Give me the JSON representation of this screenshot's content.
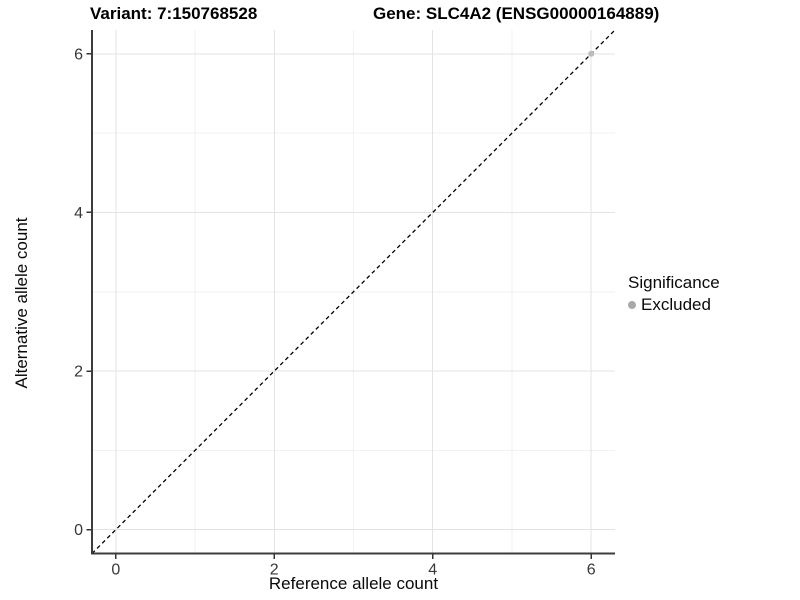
{
  "chart_data": {
    "type": "scatter",
    "title_left": "Variant: 7:150768528",
    "title_right": "Gene: SLC4A2 (ENSG00000164889)",
    "xlabel": "Reference allele count",
    "ylabel": "Alternative allele count",
    "xlim": [
      -0.3,
      6.3
    ],
    "ylim": [
      -0.3,
      6.3
    ],
    "x_ticks": [
      0,
      2,
      4,
      6
    ],
    "y_ticks": [
      0,
      2,
      4,
      6
    ],
    "x_minor": [
      1,
      3,
      5
    ],
    "y_minor": [
      1,
      3,
      5
    ],
    "grid": "on",
    "legend": {
      "title": "Significance",
      "position": "right",
      "items": [
        {
          "label": "Excluded",
          "color": "#a9a9a9"
        }
      ]
    },
    "series": [
      {
        "name": "Excluded",
        "color": "#bcbcbc",
        "points": [
          [
            6,
            6
          ]
        ]
      }
    ],
    "identity_line": {
      "style": "dashed",
      "color": "#000000"
    }
  },
  "colors": {
    "background": "#ffffff",
    "grid_major": "#e3e3e3",
    "grid_minor": "#f2f2f2",
    "axis_line": "#3c3c3c",
    "tick_mark": "#333333",
    "tick_label": "#383838"
  }
}
